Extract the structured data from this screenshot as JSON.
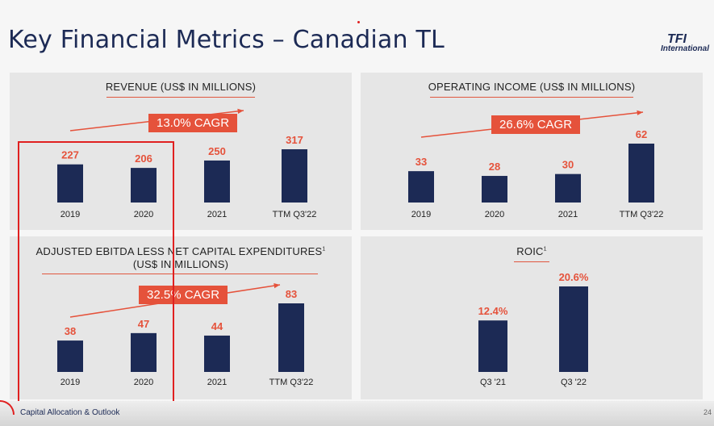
{
  "title": "Key Financial Metrics – Canadian TL",
  "logo": {
    "line1": "TFI",
    "line2": "International"
  },
  "footer": {
    "label": "Capital Allocation & Outlook",
    "page": "24"
  },
  "colors": {
    "bar": "#1c2a55",
    "value": "#e5523b",
    "accent": "#e5523b",
    "panel": "#e6e6e6"
  },
  "panels": {
    "revenue": {
      "title": "REVENUE (US$ IN MILLIONS)",
      "cagr": "13.0% CAGR"
    },
    "operating_income": {
      "title": "OPERATING INCOME (US$ IN MILLIONS)",
      "cagr": "26.6% CAGR"
    },
    "ebitda": {
      "title_line1": "ADJUSTED EBITDA LESS NET CAPITAL EXPENDITURES",
      "footnote": "1",
      "title_line2": "(US$ IN MILLIONS)",
      "cagr": "32.5% CAGR"
    },
    "roic": {
      "title": "ROIC",
      "footnote": "1"
    }
  },
  "chart_data": [
    {
      "type": "bar",
      "title": "REVENUE (US$ IN MILLIONS)",
      "categories": [
        "2019",
        "2020",
        "2021",
        "TTM Q3'22"
      ],
      "values": [
        227,
        206,
        250,
        317
      ],
      "value_labels": [
        "227",
        "206",
        "250",
        "317"
      ],
      "annotation": "13.0% CAGR"
    },
    {
      "type": "bar",
      "title": "OPERATING INCOME (US$ IN MILLIONS)",
      "categories": [
        "2019",
        "2020",
        "2021",
        "TTM Q3'22"
      ],
      "values": [
        33,
        28,
        30,
        62
      ],
      "value_labels": [
        "33",
        "28",
        "30",
        "62"
      ],
      "annotation": "26.6% CAGR"
    },
    {
      "type": "bar",
      "title": "ADJUSTED EBITDA LESS NET CAPITAL EXPENDITURES (US$ IN MILLIONS)",
      "categories": [
        "2019",
        "2020",
        "2021",
        "TTM Q3'22"
      ],
      "values": [
        38,
        47,
        44,
        83
      ],
      "value_labels": [
        "38",
        "47",
        "44",
        "83"
      ],
      "annotation": "32.5% CAGR"
    },
    {
      "type": "bar",
      "title": "ROIC",
      "categories": [
        "Q3 '21",
        "Q3 '22"
      ],
      "values": [
        12.4,
        20.6
      ],
      "value_labels": [
        "12.4%",
        "20.6%"
      ]
    }
  ]
}
